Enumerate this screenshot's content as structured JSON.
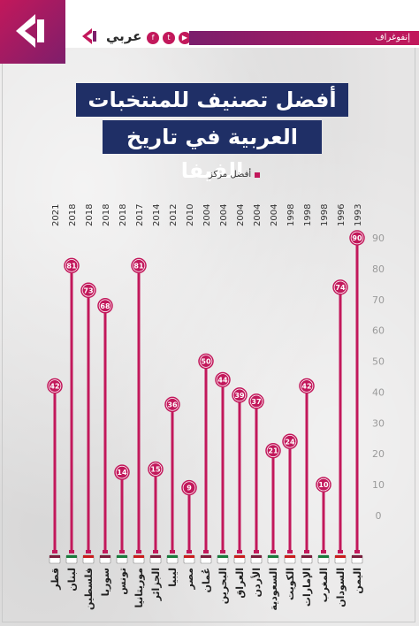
{
  "header": {
    "brand": "عربي",
    "brand_sup": "21",
    "ribbon_label": "إنفوغراف",
    "social_icons": [
      "facebook-icon",
      "twitter-icon",
      "youtube-icon",
      "telegram-icon"
    ]
  },
  "title": {
    "line1": "أفضل تصنيف للمنتخبات",
    "line2": "العربية في تاريخ الفيفا"
  },
  "legend": {
    "label": "أفضل مركز"
  },
  "colors": {
    "accent": "#c2185b",
    "title_bg": "#1f2f66",
    "axis_text": "#9a9a9a"
  },
  "chart_data": {
    "type": "bar",
    "categories": [
      "قطر",
      "لبنان",
      "فلسطين",
      "سوريا",
      "تونس",
      "موريتانيا",
      "الجزائر",
      "ليبيا",
      "مصر",
      "عُمان",
      "البحرين",
      "العراق",
      "الأردن",
      "السعودية",
      "الكويت",
      "الإمارات",
      "المغرب",
      "السودان",
      "اليمن"
    ],
    "years": [
      "2021",
      "2018",
      "2018",
      "2018",
      "2018",
      "2017",
      "2014",
      "2012",
      "2010",
      "2004",
      "2004",
      "2004",
      "2004",
      "2004",
      "1998",
      "1998",
      "1998",
      "1996",
      "1993"
    ],
    "values": [
      42,
      81,
      73,
      68,
      14,
      81,
      15,
      36,
      9,
      50,
      44,
      39,
      37,
      21,
      24,
      42,
      10,
      74,
      90
    ],
    "yticks": [
      0,
      10,
      20,
      30,
      40,
      50,
      60,
      70,
      80,
      90
    ],
    "ylim": [
      0,
      90
    ]
  }
}
